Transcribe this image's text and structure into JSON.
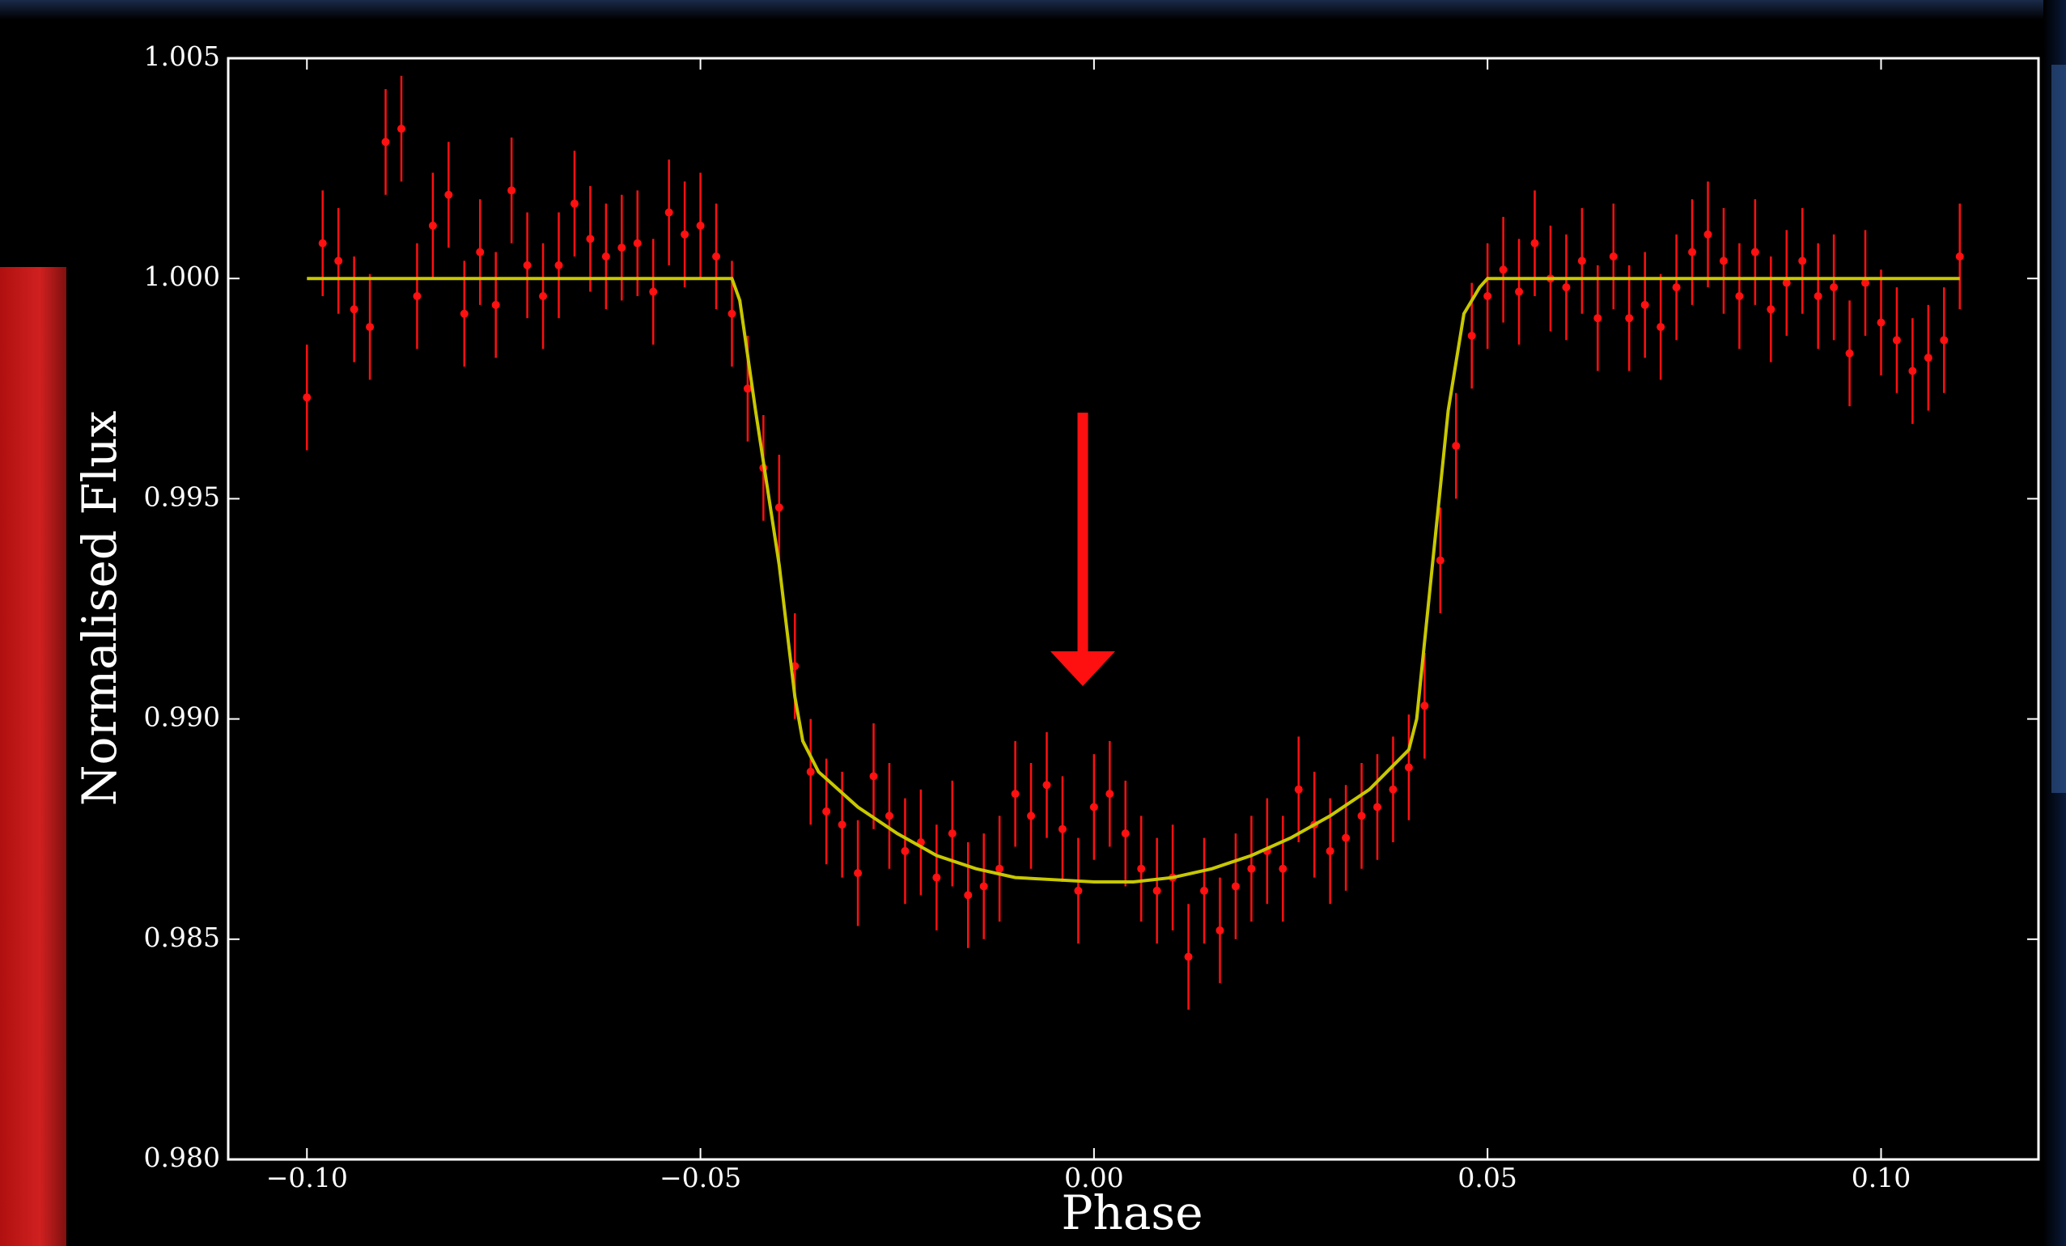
{
  "chart_data": {
    "type": "scatter",
    "xlabel": "Phase",
    "ylabel": "Normalised Flux",
    "xlim": [
      -0.11,
      0.12
    ],
    "ylim": [
      0.98,
      1.005
    ],
    "xticks": [
      {
        "value": -0.1,
        "label": "−0.10"
      },
      {
        "value": -0.05,
        "label": "−0.05"
      },
      {
        "value": 0.0,
        "label": "0.00"
      },
      {
        "value": 0.05,
        "label": "0.05"
      },
      {
        "value": 0.1,
        "label": "0.10"
      }
    ],
    "yticks": [
      {
        "value": 0.98,
        "label": "0.980"
      },
      {
        "value": 0.985,
        "label": "0.985"
      },
      {
        "value": 0.99,
        "label": "0.990"
      },
      {
        "value": 0.995,
        "label": "0.995"
      },
      {
        "value": 1.0,
        "label": "1.000"
      },
      {
        "value": 1.005,
        "label": "1.005"
      }
    ],
    "series": [
      {
        "type": "scatter",
        "color": "#ff1010",
        "error": 0.0012,
        "x": [
          -0.1,
          -0.098,
          -0.096,
          -0.094,
          -0.092,
          -0.09,
          -0.088,
          -0.086,
          -0.084,
          -0.082,
          -0.08,
          -0.078,
          -0.076,
          -0.074,
          -0.072,
          -0.07,
          -0.068,
          -0.066,
          -0.064,
          -0.062,
          -0.06,
          -0.058,
          -0.056,
          -0.054,
          -0.052,
          -0.05,
          -0.048,
          -0.046,
          -0.044,
          -0.042,
          -0.04,
          -0.038,
          -0.036,
          -0.034,
          -0.032,
          -0.03,
          -0.028,
          -0.026,
          -0.024,
          -0.022,
          -0.02,
          -0.018,
          -0.016,
          -0.014,
          -0.012,
          -0.01,
          -0.008,
          -0.006,
          -0.004,
          -0.002,
          0.0,
          0.002,
          0.004,
          0.006,
          0.008,
          0.01,
          0.012,
          0.014,
          0.016,
          0.018,
          0.02,
          0.022,
          0.024,
          0.026,
          0.028,
          0.03,
          0.032,
          0.034,
          0.036,
          0.038,
          0.04,
          0.042,
          0.044,
          0.046,
          0.048,
          0.05,
          0.052,
          0.054,
          0.056,
          0.058,
          0.06,
          0.062,
          0.064,
          0.066,
          0.068,
          0.07,
          0.072,
          0.074,
          0.076,
          0.078,
          0.08,
          0.082,
          0.084,
          0.086,
          0.088,
          0.09,
          0.092,
          0.094,
          0.096,
          0.098,
          0.1,
          0.102,
          0.104,
          0.106,
          0.108,
          0.11
        ],
        "values": [
          0.9973,
          1.0008,
          1.0004,
          0.9993,
          0.9989,
          1.0031,
          1.0034,
          0.9996,
          1.0012,
          1.0019,
          0.9992,
          1.0006,
          0.9994,
          1.002,
          1.0003,
          0.9996,
          1.0003,
          1.0017,
          1.0009,
          1.0005,
          1.0007,
          1.0008,
          0.9997,
          1.0015,
          1.001,
          1.0012,
          1.0005,
          0.9992,
          0.9975,
          0.9957,
          0.9948,
          0.9912,
          0.9888,
          0.9879,
          0.9876,
          0.9865,
          0.9887,
          0.9878,
          0.987,
          0.9872,
          0.9864,
          0.9874,
          0.986,
          0.9862,
          0.9866,
          0.9883,
          0.9878,
          0.9885,
          0.9875,
          0.9861,
          0.988,
          0.9883,
          0.9874,
          0.9866,
          0.9861,
          0.9864,
          0.9846,
          0.9861,
          0.9852,
          0.9862,
          0.9866,
          0.987,
          0.9866,
          0.9884,
          0.9876,
          0.987,
          0.9873,
          0.9878,
          0.988,
          0.9884,
          0.9889,
          0.9903,
          0.9936,
          0.9962,
          0.9987,
          0.9996,
          1.0002,
          0.9997,
          1.0008,
          1.0,
          0.9998,
          1.0004,
          0.9991,
          1.0005,
          0.9991,
          0.9994,
          0.9989,
          0.9998,
          1.0006,
          1.001,
          1.0004,
          0.9996,
          1.0006,
          0.9993,
          0.9999,
          1.0004,
          0.9996,
          0.9998,
          0.9983,
          0.9999,
          0.999,
          0.9986,
          0.9979,
          0.9982,
          0.9986,
          1.0005
        ]
      },
      {
        "type": "line",
        "color": "#c8c800",
        "x": [
          -0.1,
          -0.046,
          -0.045,
          -0.043,
          -0.04,
          -0.038,
          -0.037,
          -0.035,
          -0.03,
          -0.025,
          -0.02,
          -0.015,
          -0.01,
          -0.005,
          0.0,
          0.005,
          0.01,
          0.015,
          0.02,
          0.025,
          0.03,
          0.035,
          0.04,
          0.041,
          0.043,
          0.045,
          0.047,
          0.049,
          0.05,
          0.11
        ],
        "values": [
          1.0,
          1.0,
          0.9995,
          0.997,
          0.9935,
          0.9905,
          0.9895,
          0.9888,
          0.988,
          0.9874,
          0.9869,
          0.9866,
          0.9864,
          0.98635,
          0.9863,
          0.9863,
          0.9864,
          0.9866,
          0.9869,
          0.9873,
          0.9878,
          0.9884,
          0.9893,
          0.99,
          0.9935,
          0.997,
          0.9992,
          0.9998,
          1.0,
          1.0
        ]
      }
    ]
  }
}
